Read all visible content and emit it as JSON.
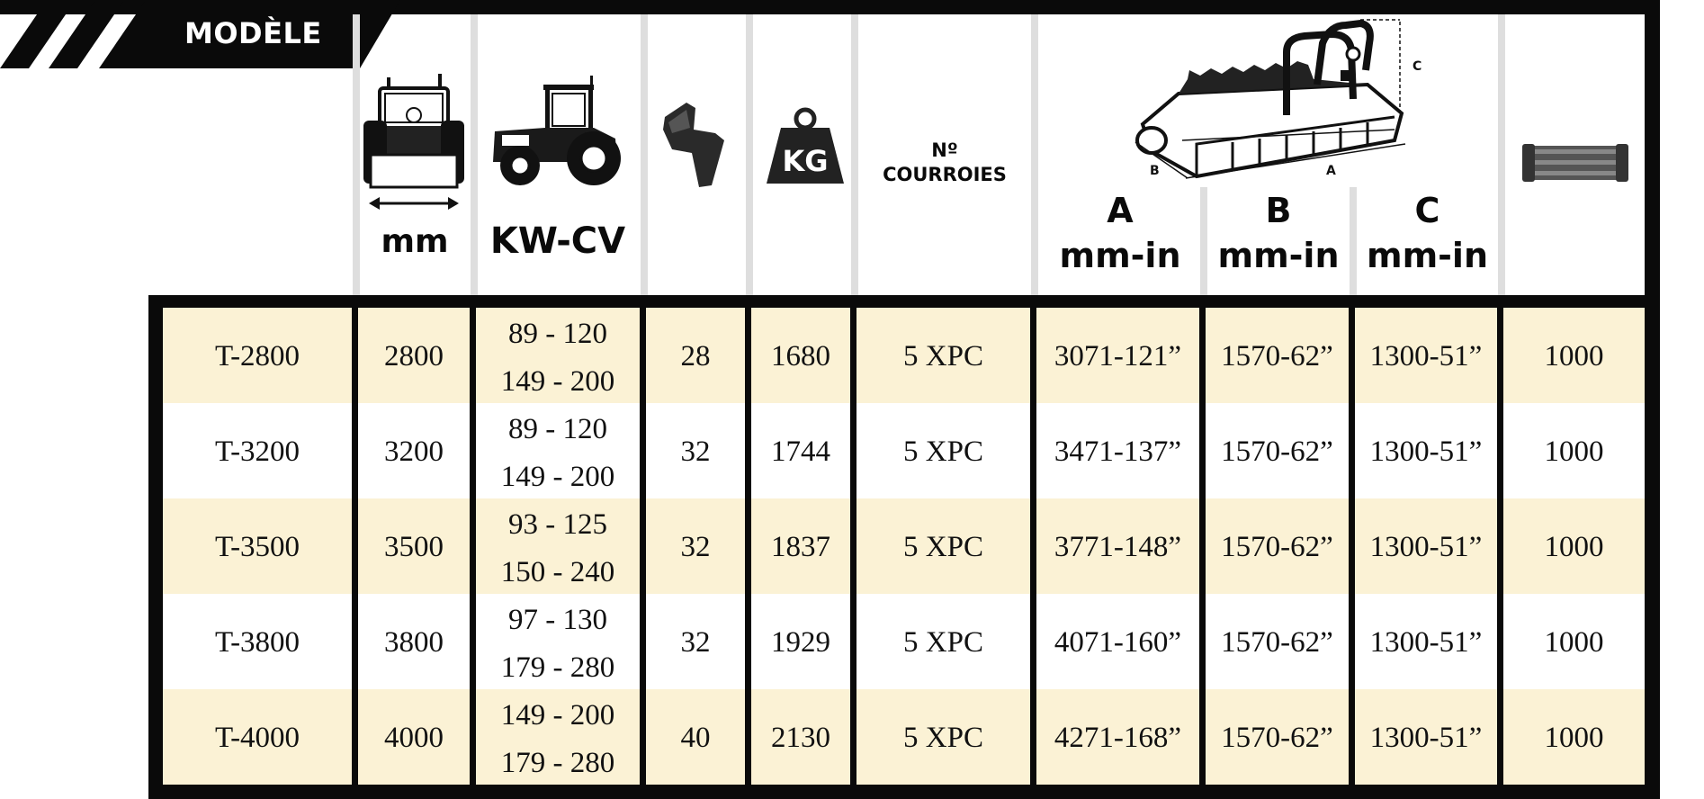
{
  "header": {
    "tab_label": "MODÈLE",
    "icons": [
      "tractor-rear-width-icon",
      "tractor-power-icon",
      "hammer-blade-icon",
      "weight-kg-icon",
      "mulcher-dimensions-icon",
      "pto-shaft-icon"
    ],
    "width_unit": "mm",
    "power_unit": "KW-CV",
    "weight_icon_text": "KG",
    "belts_label_line1": "Nº",
    "belts_label_line2": "COURROIES",
    "diagram_labels": {
      "a": "A",
      "b": "B",
      "c": "C"
    },
    "dim_a": {
      "letter": "A",
      "unit": "mm-in"
    },
    "dim_b": {
      "letter": "B",
      "unit": "mm-in"
    },
    "dim_c": {
      "letter": "C",
      "unit": "mm-in"
    }
  },
  "rows": [
    {
      "model": "T-2800",
      "width": "2800",
      "power_1": "89 - 120",
      "power_2": "149 - 200",
      "blades": "28",
      "weight": "1680",
      "belts": "5 XPC",
      "a": "3071-121”",
      "b": "1570-62”",
      "c": "1300-51”",
      "pto": "1000"
    },
    {
      "model": "T-3200",
      "width": "3200",
      "power_1": "89 - 120",
      "power_2": "149 - 200",
      "blades": "32",
      "weight": "1744",
      "belts": "5 XPC",
      "a": "3471-137”",
      "b": "1570-62”",
      "c": "1300-51”",
      "pto": "1000"
    },
    {
      "model": "T-3500",
      "width": "3500",
      "power_1": "93 - 125",
      "power_2": "150 - 240",
      "blades": "32",
      "weight": "1837",
      "belts": "5 XPC",
      "a": "3771-148”",
      "b": "1570-62”",
      "c": "1300-51”",
      "pto": "1000"
    },
    {
      "model": "T-3800",
      "width": "3800",
      "power_1": "97 - 130",
      "power_2": "179 - 280",
      "blades": "32",
      "weight": "1929",
      "belts": "5 XPC",
      "a": "4071-160”",
      "b": "1570-62”",
      "c": "1300-51”",
      "pto": "1000"
    },
    {
      "model": "T-4000",
      "width": "4000",
      "power_1": "149 - 200",
      "power_2": "179 - 280",
      "blades": "40",
      "weight": "2130",
      "belts": "5 XPC",
      "a": "4271-168”",
      "b": "1570-62”",
      "c": "1300-51”",
      "pto": "1000"
    }
  ],
  "colors": {
    "frame": "#0a0a0a",
    "row_highlight": "#fbf2d5",
    "row_plain": "#ffffff",
    "header_separator": "#dedede"
  }
}
